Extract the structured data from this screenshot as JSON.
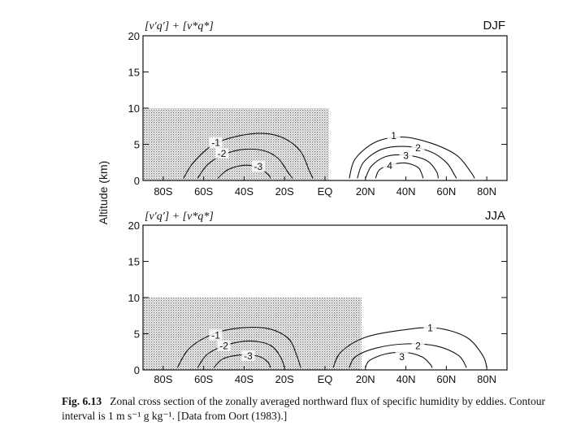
{
  "figure": {
    "ylabel": "Altitude (km)",
    "caption_figno": "Fig. 6.13",
    "caption_text": "Zonal cross section of the zonally averaged northward flux of specific humidity by eddies. Contour interval is 1 m s⁻¹ g kg⁻¹. [Data from Oort (1983).]"
  },
  "chart_data": [
    {
      "type": "contour",
      "season": "DJF",
      "title": "[v′q′] + [v*q*]",
      "xlabel": "",
      "ylabel": "Altitude (km)",
      "x_ticks": [
        "80S",
        "60S",
        "40S",
        "20S",
        "EQ",
        "20N",
        "40N",
        "60N",
        "80N"
      ],
      "x_values": [
        -80,
        -60,
        -40,
        -20,
        0,
        20,
        40,
        60,
        80
      ],
      "xlim": [
        -90,
        90
      ],
      "y_ticks": [
        0,
        5,
        10,
        15,
        20
      ],
      "ylim": [
        0,
        20
      ],
      "contour_interval": 1,
      "negative_region": {
        "lat_range": [
          -90,
          2
        ],
        "top_km": 10,
        "shaded": true
      },
      "contours": [
        {
          "level": -1,
          "label": "-1",
          "label_at": [
            -54,
            5.2
          ],
          "points": [
            [
              -70,
              0.3
            ],
            [
              -65,
              2.5
            ],
            [
              -55,
              5
            ],
            [
              -42,
              6.2
            ],
            [
              -30,
              6.5
            ],
            [
              -20,
              5.8
            ],
            [
              -12,
              4
            ],
            [
              -8,
              1.5
            ],
            [
              -6,
              0.3
            ]
          ]
        },
        {
          "level": -2,
          "label": "-2",
          "label_at": [
            -51,
            3.7
          ],
          "points": [
            [
              -63,
              0.3
            ],
            [
              -58,
              2.2
            ],
            [
              -50,
              3.6
            ],
            [
              -40,
              4.3
            ],
            [
              -30,
              4.1
            ],
            [
              -23,
              3
            ],
            [
              -18,
              1
            ],
            [
              -16,
              0.3
            ]
          ]
        },
        {
          "level": -3,
          "label": "-3",
          "label_at": [
            -33,
            1.9
          ],
          "points": [
            [
              -53,
              0.3
            ],
            [
              -48,
              1.5
            ],
            [
              -40,
              2.1
            ],
            [
              -33,
              1.8
            ],
            [
              -28,
              0.8
            ],
            [
              -27,
              0.3
            ]
          ]
        },
        {
          "level": 1,
          "label": "1",
          "label_at": [
            34,
            6.2
          ],
          "points": [
            [
              12,
              0.3
            ],
            [
              15,
              3
            ],
            [
              25,
              5.3
            ],
            [
              38,
              6
            ],
            [
              52,
              5.2
            ],
            [
              65,
              3.5
            ],
            [
              72,
              1.2
            ],
            [
              74,
              0.3
            ]
          ]
        },
        {
          "level": 2,
          "label": "2",
          "label_at": [
            46,
            4.5
          ],
          "points": [
            [
              16,
              0.3
            ],
            [
              19,
              2.5
            ],
            [
              28,
              4.3
            ],
            [
              40,
              4.7
            ],
            [
              52,
              4
            ],
            [
              60,
              2.5
            ],
            [
              64,
              0.8
            ],
            [
              65,
              0.3
            ]
          ]
        },
        {
          "level": 3,
          "label": "3",
          "label_at": [
            40,
            3.4
          ],
          "points": [
            [
              20,
              0.3
            ],
            [
              23,
              2
            ],
            [
              30,
              3.3
            ],
            [
              40,
              3.5
            ],
            [
              50,
              2.8
            ],
            [
              55,
              1.3
            ],
            [
              56,
              0.3
            ]
          ]
        },
        {
          "level": 4,
          "label": "4",
          "label_at": [
            32,
            2
          ],
          "points": [
            [
              25,
              0.3
            ],
            [
              27,
              1.5
            ],
            [
              33,
              2.2
            ],
            [
              40,
              2.4
            ],
            [
              46,
              1.8
            ],
            [
              48,
              0.8
            ],
            [
              48.5,
              0.3
            ]
          ]
        }
      ]
    },
    {
      "type": "contour",
      "season": "JJA",
      "title": "[v′q′] + [v*q*]",
      "xlabel": "",
      "ylabel": "Altitude (km)",
      "x_ticks": [
        "80S",
        "60S",
        "40S",
        "20S",
        "EQ",
        "20N",
        "40N",
        "60N",
        "80N"
      ],
      "x_values": [
        -80,
        -60,
        -40,
        -20,
        0,
        20,
        40,
        60,
        80
      ],
      "xlim": [
        -90,
        90
      ],
      "y_ticks": [
        0,
        5,
        10,
        15,
        20
      ],
      "ylim": [
        0,
        20
      ],
      "contour_interval": 1,
      "negative_region": {
        "lat_range": [
          -90,
          18
        ],
        "top_km": 10,
        "shaded": true
      },
      "contours": [
        {
          "level": -1,
          "label": "-1",
          "label_at": [
            -54,
            4.8
          ],
          "points": [
            [
              -73,
              0.3
            ],
            [
              -67,
              3
            ],
            [
              -55,
              5
            ],
            [
              -42,
              5.8
            ],
            [
              -28,
              5.7
            ],
            [
              -18,
              4.3
            ],
            [
              -14,
              2
            ],
            [
              -12,
              0.3
            ]
          ]
        },
        {
          "level": -2,
          "label": "-2",
          "label_at": [
            -50,
            3.3
          ],
          "points": [
            [
              -63,
              0.3
            ],
            [
              -58,
              2.2
            ],
            [
              -48,
              3.5
            ],
            [
              -37,
              4
            ],
            [
              -27,
              3.4
            ],
            [
              -22,
              1.8
            ],
            [
              -20,
              0.3
            ]
          ]
        },
        {
          "level": -3,
          "label": "-3",
          "label_at": [
            -38,
            1.9
          ],
          "points": [
            [
              -55,
              0.3
            ],
            [
              -50,
              1.6
            ],
            [
              -40,
              2.1
            ],
            [
              -32,
              1.8
            ],
            [
              -28,
              1
            ],
            [
              -27,
              0.3
            ]
          ]
        },
        {
          "level": 1,
          "label": "1",
          "label_at": [
            52,
            5.8
          ],
          "points": [
            [
              4,
              0.3
            ],
            [
              8,
              2.5
            ],
            [
              20,
              4.5
            ],
            [
              38,
              5.5
            ],
            [
              55,
              5.8
            ],
            [
              70,
              4.5
            ],
            [
              78,
              2
            ],
            [
              80,
              0.3
            ]
          ]
        },
        {
          "level": 2,
          "label": "2",
          "label_at": [
            46,
            3.3
          ],
          "points": [
            [
              12,
              0.3
            ],
            [
              15,
              1.8
            ],
            [
              25,
              3
            ],
            [
              40,
              3.6
            ],
            [
              55,
              3.3
            ],
            [
              66,
              2
            ],
            [
              70,
              0.3
            ]
          ]
        },
        {
          "level": 3,
          "label": "3",
          "label_at": [
            38,
            1.8
          ],
          "points": [
            [
              20,
              0.3
            ],
            [
              22,
              1.3
            ],
            [
              30,
              2.2
            ],
            [
              40,
              2.4
            ],
            [
              48,
              1.8
            ],
            [
              52,
              0.8
            ],
            [
              53,
              0.3
            ]
          ]
        }
      ]
    }
  ]
}
